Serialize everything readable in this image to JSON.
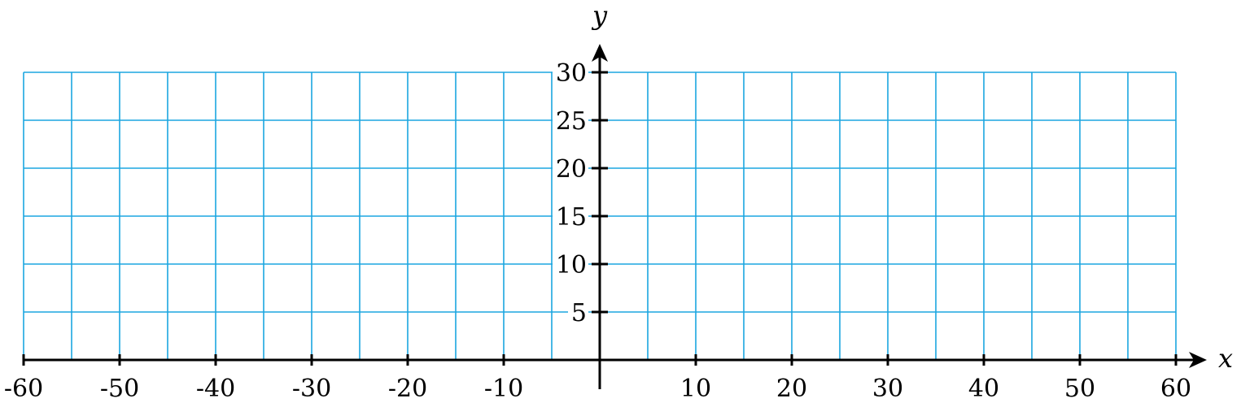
{
  "chart_data": {
    "type": "scatter",
    "xlabel": "x",
    "ylabel": "y",
    "xlim": [
      -60,
      60
    ],
    "ylim": [
      0,
      30
    ],
    "grid": true,
    "grid_color": "#1ba6e0",
    "axis_color": "#000000",
    "x_grid_step": 5,
    "y_grid_step": 5,
    "x_ticks": [
      -60,
      -50,
      -40,
      -30,
      -20,
      -10,
      10,
      20,
      30,
      40,
      50,
      60
    ],
    "x_tick_labels": [
      "-60",
      "-50",
      "-40",
      "-30",
      "-20",
      "-10",
      "10",
      "20",
      "30",
      "40",
      "50",
      "60"
    ],
    "y_ticks": [
      5,
      10,
      15,
      20,
      25,
      30
    ],
    "y_tick_labels": [
      "5",
      "10",
      "15",
      "20",
      "25",
      "30"
    ],
    "series": []
  }
}
